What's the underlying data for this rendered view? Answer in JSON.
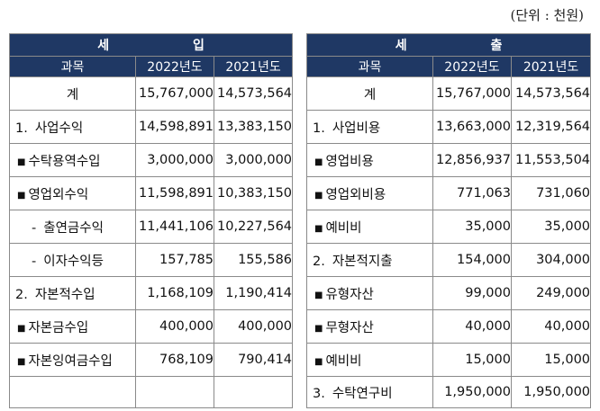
{
  "unit_label": "(단위 : 천원)",
  "income": {
    "title": "세 입",
    "headers": [
      "과목",
      "2022년도",
      "2021년도"
    ],
    "rows": [
      {
        "name": "계",
        "y2022": "15,767,000",
        "y2021": "14,573,564"
      },
      {
        "prefix": "1.",
        "name": "사업수익",
        "y2022": "14,598,891",
        "y2021": "13,383,150"
      },
      {
        "bullet": "■",
        "name": "수탁용역수입",
        "y2022": "3,000,000",
        "y2021": "3,000,000"
      },
      {
        "bullet": "■",
        "name": "영업외수익",
        "y2022": "11,598,891",
        "y2021": "10,383,150"
      },
      {
        "dash": "-",
        "name": "출연금수익",
        "y2022": "11,441,106",
        "y2021": "10,227,564"
      },
      {
        "dash": "-",
        "name": "이자수익등",
        "y2022": "157,785",
        "y2021": "155,586"
      },
      {
        "prefix": "2.",
        "name": "자본적수입",
        "y2022": "1,168,109",
        "y2021": "1,190,414"
      },
      {
        "bullet": "■",
        "name": "자본금수입",
        "y2022": "400,000",
        "y2021": "400,000"
      },
      {
        "bullet": "■",
        "name": "자본잉여금수입",
        "y2022": "768,109",
        "y2021": "790,414"
      },
      {
        "name": "",
        "y2022": "",
        "y2021": ""
      }
    ]
  },
  "expense": {
    "title": "세 출",
    "headers": [
      "과목",
      "2022년도",
      "2021년도"
    ],
    "rows": [
      {
        "name": "계",
        "y2022": "15,767,000",
        "y2021": "14,573,564"
      },
      {
        "prefix": "1.",
        "name": "사업비용",
        "y2022": "13,663,000",
        "y2021": "12,319,564"
      },
      {
        "bullet": "■",
        "name": "영업비용",
        "y2022": "12,856,937",
        "y2021": "11,553,504"
      },
      {
        "bullet": "■",
        "name": "영업외비용",
        "y2022": "771,063",
        "y2021": "731,060"
      },
      {
        "bullet": "■",
        "name": "예비비",
        "y2022": "35,000",
        "y2021": "35,000"
      },
      {
        "prefix": "2.",
        "name": "자본적지출",
        "y2022": "154,000",
        "y2021": "304,000"
      },
      {
        "bullet": "■",
        "name": "유형자산",
        "y2022": "99,000",
        "y2021": "249,000"
      },
      {
        "bullet": "■",
        "name": "무형자산",
        "y2022": "40,000",
        "y2021": "40,000"
      },
      {
        "bullet": "■",
        "name": "예비비",
        "y2022": "15,000",
        "y2021": "15,000"
      },
      {
        "prefix": "3.",
        "name": "수탁연구비",
        "y2022": "1,950,000",
        "y2021": "1,950,000"
      }
    ]
  }
}
